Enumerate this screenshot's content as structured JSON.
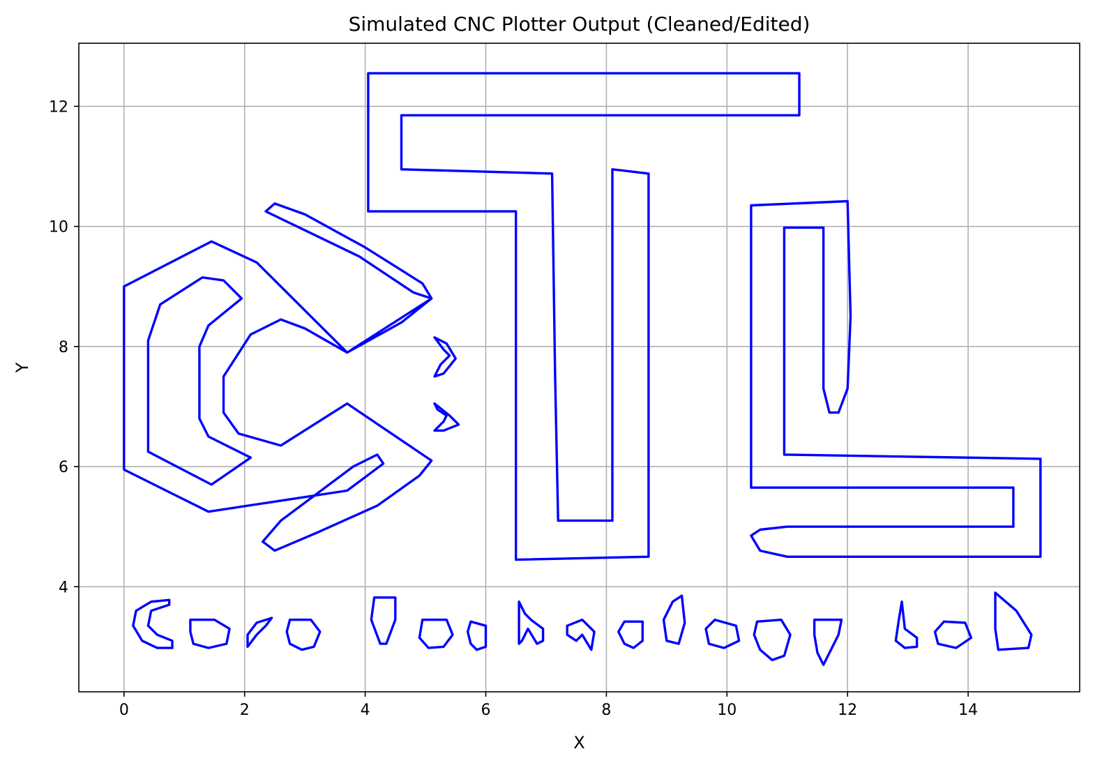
{
  "chart_data": {
    "type": "line",
    "title": "Simulated CNC Plotter Output (Cleaned/Edited)",
    "xlabel": "X",
    "ylabel": "Y",
    "xlim": [
      -0.75,
      15.85
    ],
    "ylim": [
      2.25,
      13.05
    ],
    "xticks": [
      0,
      2,
      4,
      6,
      8,
      10,
      12,
      14
    ],
    "yticks": [
      4,
      6,
      8,
      10,
      12
    ],
    "grid": true,
    "line_color": "#0000ff",
    "series": [
      {
        "shape": "letter-T-outline",
        "points": [
          [
            4.05,
            12.55
          ],
          [
            11.2,
            12.55
          ],
          [
            11.2,
            11.85
          ],
          [
            4.6,
            11.85
          ],
          [
            4.6,
            10.95
          ],
          [
            7.1,
            10.88
          ],
          [
            7.15,
            7.5
          ],
          [
            7.2,
            5.1
          ],
          [
            8.1,
            5.1
          ],
          [
            8.1,
            10.95
          ],
          [
            8.7,
            10.88
          ],
          [
            8.7,
            4.5
          ],
          [
            6.5,
            4.45
          ],
          [
            6.5,
            10.25
          ],
          [
            4.05,
            10.25
          ],
          [
            4.05,
            12.55
          ]
        ]
      },
      {
        "shape": "letter-L-outline",
        "points": [
          [
            10.4,
            10.35
          ],
          [
            12.0,
            10.42
          ],
          [
            12.05,
            8.5
          ],
          [
            12.0,
            7.3
          ],
          [
            11.85,
            6.9
          ],
          [
            11.7,
            6.9
          ],
          [
            11.6,
            7.3
          ],
          [
            11.6,
            9.98
          ],
          [
            10.95,
            9.98
          ],
          [
            10.95,
            6.2
          ],
          [
            15.2,
            6.13
          ],
          [
            15.2,
            4.5
          ],
          [
            11.0,
            4.5
          ],
          [
            10.55,
            4.6
          ],
          [
            10.4,
            4.85
          ],
          [
            10.55,
            4.95
          ],
          [
            11.0,
            5.0
          ],
          [
            14.75,
            5.0
          ],
          [
            14.75,
            5.65
          ],
          [
            10.4,
            5.65
          ],
          [
            10.4,
            10.35
          ]
        ]
      },
      {
        "shape": "hexagon-C-outer",
        "points": [
          [
            0.0,
            9.0
          ],
          [
            1.45,
            9.75
          ],
          [
            2.2,
            9.4
          ],
          [
            3.7,
            7.9
          ],
          [
            5.1,
            8.8
          ],
          [
            4.8,
            8.9
          ],
          [
            3.9,
            9.5
          ],
          [
            2.35,
            10.25
          ],
          [
            2.5,
            10.38
          ],
          [
            3.0,
            10.2
          ],
          [
            4.0,
            9.65
          ],
          [
            4.95,
            9.05
          ],
          [
            5.1,
            8.8
          ],
          [
            4.6,
            8.4
          ],
          [
            3.7,
            7.9
          ],
          [
            3.0,
            8.3
          ],
          [
            2.6,
            8.45
          ],
          [
            2.1,
            8.2
          ],
          [
            1.65,
            7.5
          ],
          [
            1.65,
            6.9
          ],
          [
            1.9,
            6.55
          ],
          [
            2.6,
            6.35
          ],
          [
            3.7,
            7.05
          ],
          [
            5.1,
            6.1
          ],
          [
            4.9,
            5.85
          ],
          [
            4.2,
            5.35
          ],
          [
            3.2,
            4.9
          ],
          [
            2.5,
            4.6
          ],
          [
            2.3,
            4.75
          ],
          [
            2.6,
            5.1
          ],
          [
            3.8,
            6.0
          ],
          [
            4.2,
            6.2
          ],
          [
            4.3,
            6.05
          ],
          [
            3.7,
            5.6
          ],
          [
            1.4,
            5.25
          ],
          [
            0.0,
            5.95
          ],
          [
            0.0,
            9.0
          ]
        ]
      },
      {
        "shape": "hexagon-C-inner",
        "points": [
          [
            0.4,
            6.25
          ],
          [
            1.45,
            5.7
          ],
          [
            2.1,
            6.15
          ],
          [
            1.4,
            6.5
          ],
          [
            1.25,
            6.8
          ],
          [
            1.25,
            8.0
          ],
          [
            1.4,
            8.35
          ],
          [
            1.95,
            8.8
          ],
          [
            1.65,
            9.1
          ],
          [
            1.3,
            9.15
          ],
          [
            0.6,
            8.7
          ],
          [
            0.4,
            8.1
          ],
          [
            0.4,
            6.25
          ]
        ]
      },
      {
        "shape": "hook-upper",
        "points": [
          [
            5.15,
            8.15
          ],
          [
            5.35,
            8.05
          ],
          [
            5.5,
            7.8
          ],
          [
            5.3,
            7.55
          ],
          [
            5.15,
            7.5
          ],
          [
            5.25,
            7.7
          ],
          [
            5.4,
            7.85
          ],
          [
            5.3,
            7.95
          ],
          [
            5.15,
            8.15
          ]
        ]
      },
      {
        "shape": "hook-lower",
        "points": [
          [
            5.15,
            7.05
          ],
          [
            5.4,
            6.85
          ],
          [
            5.55,
            6.7
          ],
          [
            5.3,
            6.6
          ],
          [
            5.15,
            6.6
          ],
          [
            5.3,
            6.75
          ],
          [
            5.35,
            6.85
          ],
          [
            5.2,
            6.95
          ],
          [
            5.15,
            7.05
          ]
        ]
      },
      {
        "shape": "glyph-1",
        "points": [
          [
            0.75,
            3.78
          ],
          [
            0.45,
            3.75
          ],
          [
            0.2,
            3.6
          ],
          [
            0.15,
            3.35
          ],
          [
            0.3,
            3.1
          ],
          [
            0.55,
            2.98
          ],
          [
            0.8,
            2.98
          ],
          [
            0.8,
            3.1
          ],
          [
            0.55,
            3.2
          ],
          [
            0.4,
            3.35
          ],
          [
            0.45,
            3.6
          ],
          [
            0.75,
            3.7
          ],
          [
            0.75,
            3.78
          ]
        ]
      },
      {
        "shape": "glyph-2",
        "points": [
          [
            1.1,
            3.45
          ],
          [
            1.5,
            3.45
          ],
          [
            1.75,
            3.3
          ],
          [
            1.7,
            3.05
          ],
          [
            1.4,
            2.98
          ],
          [
            1.15,
            3.05
          ],
          [
            1.1,
            3.25
          ],
          [
            1.1,
            3.45
          ]
        ]
      },
      {
        "shape": "glyph-3",
        "points": [
          [
            2.45,
            3.48
          ],
          [
            2.2,
            3.4
          ],
          [
            2.05,
            3.2
          ],
          [
            2.05,
            3.0
          ],
          [
            2.2,
            3.2
          ],
          [
            2.35,
            3.35
          ],
          [
            2.45,
            3.48
          ]
        ]
      },
      {
        "shape": "glyph-4",
        "points": [
          [
            2.75,
            3.45
          ],
          [
            3.1,
            3.45
          ],
          [
            3.25,
            3.25
          ],
          [
            3.15,
            3.0
          ],
          [
            2.95,
            2.95
          ],
          [
            2.75,
            3.05
          ],
          [
            2.7,
            3.25
          ],
          [
            2.75,
            3.45
          ]
        ]
      },
      {
        "shape": "glyph-5",
        "points": [
          [
            4.15,
            3.82
          ],
          [
            4.5,
            3.82
          ],
          [
            4.5,
            3.45
          ],
          [
            4.35,
            3.05
          ],
          [
            4.25,
            3.05
          ],
          [
            4.1,
            3.45
          ],
          [
            4.15,
            3.82
          ]
        ]
      },
      {
        "shape": "glyph-6",
        "points": [
          [
            4.95,
            3.45
          ],
          [
            5.35,
            3.45
          ],
          [
            5.45,
            3.2
          ],
          [
            5.3,
            3.0
          ],
          [
            5.05,
            2.98
          ],
          [
            4.9,
            3.15
          ],
          [
            4.95,
            3.45
          ]
        ]
      },
      {
        "shape": "glyph-7",
        "points": [
          [
            5.75,
            3.42
          ],
          [
            6.0,
            3.35
          ],
          [
            6.0,
            3.0
          ],
          [
            5.85,
            2.95
          ],
          [
            5.75,
            3.05
          ],
          [
            5.7,
            3.25
          ],
          [
            5.75,
            3.42
          ]
        ]
      },
      {
        "shape": "glyph-8",
        "points": [
          [
            6.55,
            3.75
          ],
          [
            6.65,
            3.55
          ],
          [
            6.75,
            3.45
          ],
          [
            6.95,
            3.3
          ],
          [
            6.95,
            3.1
          ],
          [
            6.85,
            3.05
          ],
          [
            6.7,
            3.3
          ],
          [
            6.6,
            3.1
          ],
          [
            6.55,
            3.05
          ],
          [
            6.55,
            3.75
          ]
        ]
      },
      {
        "shape": "glyph-9",
        "points": [
          [
            7.35,
            3.35
          ],
          [
            7.6,
            3.45
          ],
          [
            7.8,
            3.25
          ],
          [
            7.75,
            2.95
          ],
          [
            7.6,
            3.2
          ],
          [
            7.5,
            3.1
          ],
          [
            7.35,
            3.2
          ],
          [
            7.35,
            3.35
          ]
        ]
      },
      {
        "shape": "glyph-10",
        "points": [
          [
            8.3,
            3.42
          ],
          [
            8.6,
            3.42
          ],
          [
            8.6,
            3.1
          ],
          [
            8.45,
            2.98
          ],
          [
            8.3,
            3.05
          ],
          [
            8.2,
            3.25
          ],
          [
            8.3,
            3.42
          ]
        ]
      },
      {
        "shape": "glyph-11",
        "points": [
          [
            9.25,
            3.85
          ],
          [
            9.3,
            3.4
          ],
          [
            9.2,
            3.05
          ],
          [
            9.0,
            3.1
          ],
          [
            8.95,
            3.45
          ],
          [
            9.1,
            3.75
          ],
          [
            9.25,
            3.85
          ]
        ]
      },
      {
        "shape": "glyph-12",
        "points": [
          [
            9.8,
            3.45
          ],
          [
            10.15,
            3.35
          ],
          [
            10.2,
            3.1
          ],
          [
            9.95,
            2.98
          ],
          [
            9.7,
            3.05
          ],
          [
            9.65,
            3.3
          ],
          [
            9.8,
            3.45
          ]
        ]
      },
      {
        "shape": "glyph-13",
        "points": [
          [
            10.5,
            3.42
          ],
          [
            10.9,
            3.45
          ],
          [
            11.05,
            3.2
          ],
          [
            10.95,
            2.85
          ],
          [
            10.75,
            2.78
          ],
          [
            10.55,
            2.95
          ],
          [
            10.45,
            3.2
          ],
          [
            10.5,
            3.42
          ]
        ]
      },
      {
        "shape": "glyph-14",
        "points": [
          [
            11.45,
            3.45
          ],
          [
            11.9,
            3.45
          ],
          [
            11.85,
            3.2
          ],
          [
            11.6,
            2.7
          ],
          [
            11.5,
            2.9
          ],
          [
            11.45,
            3.2
          ],
          [
            11.45,
            3.45
          ]
        ]
      },
      {
        "shape": "glyph-15",
        "points": [
          [
            12.9,
            3.75
          ],
          [
            12.95,
            3.3
          ],
          [
            13.15,
            3.15
          ],
          [
            13.15,
            3.0
          ],
          [
            12.95,
            2.98
          ],
          [
            12.8,
            3.1
          ],
          [
            12.85,
            3.45
          ],
          [
            12.9,
            3.75
          ]
        ]
      },
      {
        "shape": "glyph-16",
        "points": [
          [
            13.6,
            3.42
          ],
          [
            13.95,
            3.4
          ],
          [
            14.05,
            3.15
          ],
          [
            13.8,
            2.98
          ],
          [
            13.5,
            3.05
          ],
          [
            13.45,
            3.25
          ],
          [
            13.6,
            3.42
          ]
        ]
      },
      {
        "shape": "glyph-17",
        "points": [
          [
            14.45,
            3.9
          ],
          [
            14.8,
            3.6
          ],
          [
            15.05,
            3.2
          ],
          [
            15.0,
            2.98
          ],
          [
            14.5,
            2.95
          ],
          [
            14.45,
            3.3
          ],
          [
            14.45,
            3.9
          ]
        ]
      }
    ]
  }
}
